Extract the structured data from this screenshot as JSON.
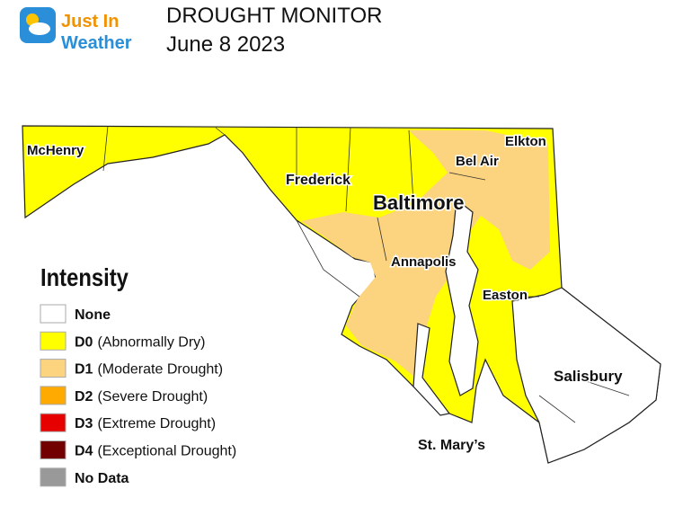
{
  "logo": {
    "line1": "Just In",
    "line2": "Weather"
  },
  "header": {
    "title": "DROUGHT MONITOR",
    "date": "June 8 2023"
  },
  "legend": {
    "title": "Intensity",
    "items": [
      {
        "label": "None",
        "color": "#ffffff"
      },
      {
        "code": "D0",
        "description": "(Abnormally Dry)",
        "color": "#ffff00"
      },
      {
        "code": "D1",
        "description": "(Moderate Drought)",
        "color": "#fcd37f"
      },
      {
        "code": "D2",
        "description": "(Severe Drought)",
        "color": "#ffaa00"
      },
      {
        "code": "D3",
        "description": "(Extreme Drought)",
        "color": "#e60000"
      },
      {
        "code": "D4",
        "description": "(Exceptional Drought)",
        "color": "#730000"
      },
      {
        "label": "No Data",
        "color": "#999999"
      }
    ]
  },
  "cities": [
    "McHenry",
    "Frederick",
    "Bel Air",
    "Elkton",
    "Baltimore",
    "Annapolis",
    "Easton",
    "Salisbury",
    "St. Mary’s"
  ]
}
